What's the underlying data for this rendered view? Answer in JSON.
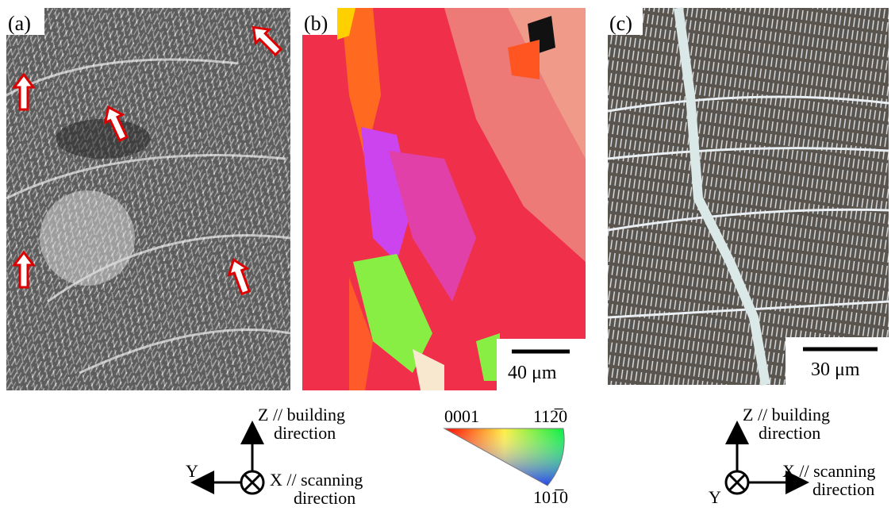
{
  "panels": [
    {
      "label": "(a)"
    },
    {
      "label": "(b)",
      "scale_bar": "40 μm"
    },
    {
      "label": "(c)",
      "scale_bar": "30 μm"
    }
  ],
  "axes_left": {
    "z_line1": "Z // building",
    "z_line2": "direction",
    "y": "Y",
    "x_line1": "X // scanning",
    "x_line2": "direction"
  },
  "ipf_key": {
    "top_left": "0001",
    "top_right": "112̅0",
    "bottom": "101̅0"
  },
  "axes_right": {
    "z_line1": "Z // building",
    "z_line2": "direction",
    "y": "Y",
    "x_line1": "X // scanning",
    "x_line2": "direction"
  }
}
